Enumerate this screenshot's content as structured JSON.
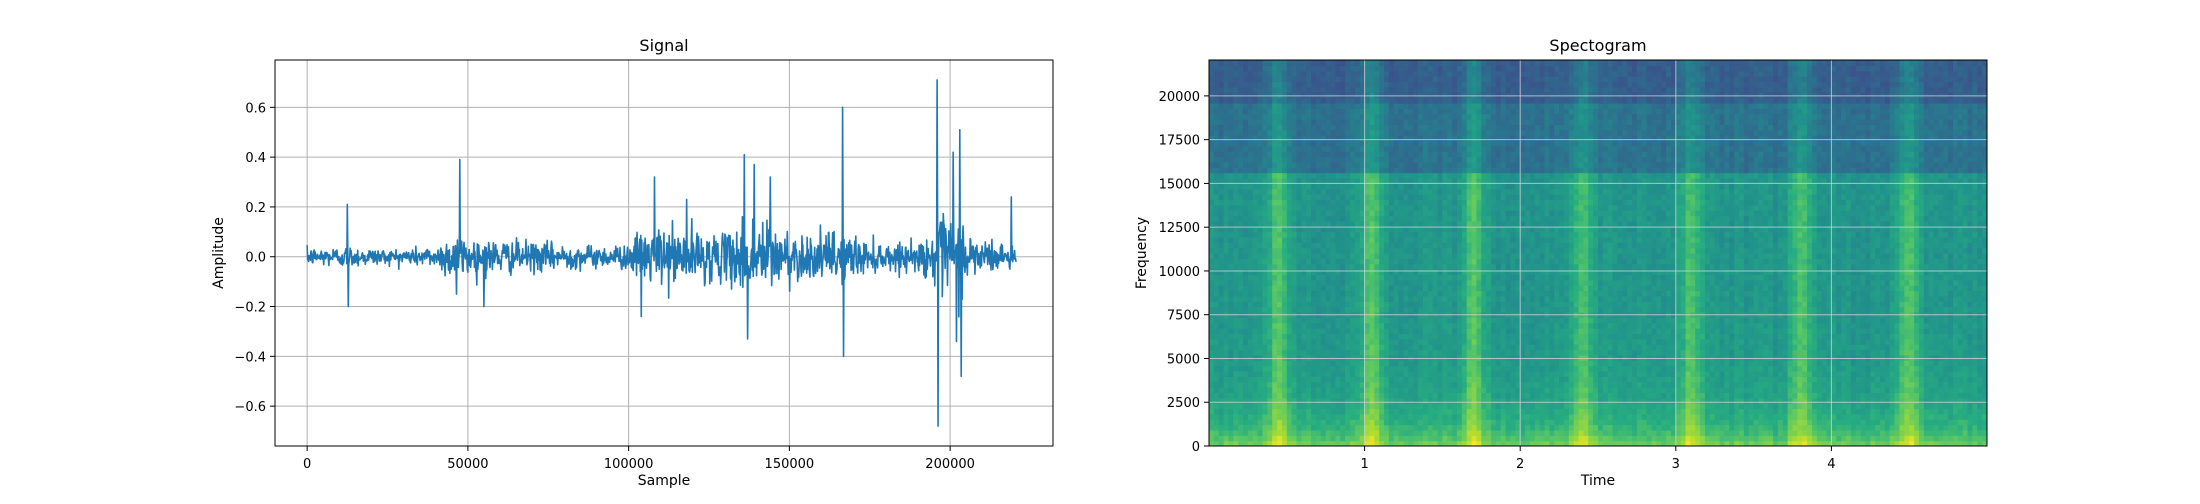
{
  "chart_data": [
    {
      "type": "line",
      "title": "Signal",
      "xlabel": "Sample",
      "ylabel": "Amplitude",
      "xlim": [
        -10000,
        232000
      ],
      "ylim": [
        -0.76,
        0.79
      ],
      "xticks": [
        0,
        50000,
        100000,
        150000,
        200000
      ],
      "yticks": [
        -0.6,
        -0.4,
        -0.2,
        0.0,
        0.2,
        0.4,
        0.6
      ],
      "xtick_labels": [
        "0",
        "50000",
        "100000",
        "150000",
        "200000"
      ],
      "ytick_labels": [
        "−0.6",
        "−0.4",
        "−0.2",
        "0.0",
        "0.2",
        "0.4",
        "0.6"
      ],
      "grid": true,
      "color": "#1f77b4",
      "n_samples": 220500,
      "envelope": {
        "x": [
          0,
          12000,
          25000,
          40000,
          46000,
          50000,
          60000,
          70000,
          90000,
          100000,
          104000,
          110000,
          120000,
          130000,
          135000,
          140000,
          150000,
          160000,
          166000,
          175000,
          190000,
          196000,
          200000,
          206000,
          214000,
          220500
        ],
        "amp": [
          0.04,
          0.05,
          0.035,
          0.05,
          0.12,
          0.09,
          0.08,
          0.07,
          0.05,
          0.06,
          0.12,
          0.14,
          0.13,
          0.1,
          0.18,
          0.2,
          0.12,
          0.1,
          0.13,
          0.07,
          0.06,
          0.16,
          0.25,
          0.12,
          0.07,
          0.05
        ]
      },
      "spikes": [
        {
          "x": 12500,
          "y": 0.21
        },
        {
          "x": 12800,
          "y": -0.2
        },
        {
          "x": 47500,
          "y": 0.39
        },
        {
          "x": 46500,
          "y": -0.15
        },
        {
          "x": 55000,
          "y": -0.2
        },
        {
          "x": 108000,
          "y": 0.32
        },
        {
          "x": 104000,
          "y": -0.24
        },
        {
          "x": 118000,
          "y": 0.23
        },
        {
          "x": 136000,
          "y": 0.41
        },
        {
          "x": 137000,
          "y": -0.33
        },
        {
          "x": 139000,
          "y": 0.37
        },
        {
          "x": 144000,
          "y": 0.32
        },
        {
          "x": 166500,
          "y": 0.6
        },
        {
          "x": 166800,
          "y": -0.4
        },
        {
          "x": 196000,
          "y": 0.71
        },
        {
          "x": 196200,
          "y": -0.68
        },
        {
          "x": 201000,
          "y": 0.42
        },
        {
          "x": 202000,
          "y": -0.34
        },
        {
          "x": 203000,
          "y": 0.51
        },
        {
          "x": 203500,
          "y": -0.48
        },
        {
          "x": 219000,
          "y": 0.24
        }
      ]
    },
    {
      "type": "heatmap",
      "title": "Spectogram",
      "xlabel": "Time",
      "ylabel": "Frequency",
      "xlim": [
        0,
        5.0
      ],
      "ylim": [
        0,
        22050
      ],
      "xticks": [
        1,
        2,
        3,
        4
      ],
      "yticks": [
        0,
        2500,
        5000,
        7500,
        10000,
        12500,
        15000,
        17500,
        20000
      ],
      "xtick_labels": [
        "1",
        "2",
        "3",
        "4"
      ],
      "ytick_labels": [
        "0",
        "2500",
        "5000",
        "7500",
        "10000",
        "12500",
        "15000",
        "17500",
        "20000"
      ],
      "grid": true,
      "colormap": "viridis",
      "bright_bands_time": [
        0.45,
        1.05,
        1.7,
        2.4,
        3.1,
        3.8,
        4.5
      ],
      "band_edge_frequency": 15500
    }
  ]
}
